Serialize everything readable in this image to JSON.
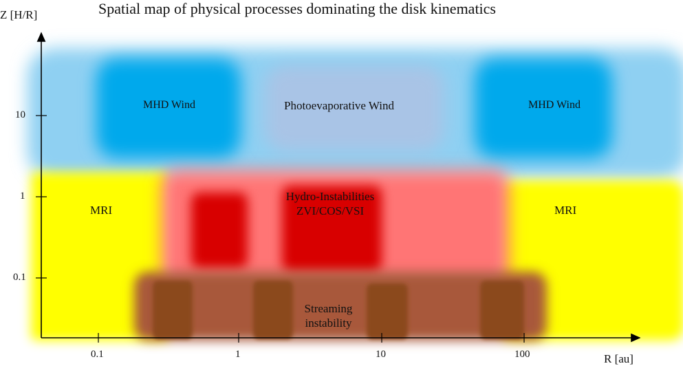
{
  "title": "Spatial map of physical processes dominating the disk kinematics",
  "y_axis": {
    "label": "Z [H/R]",
    "ticks": [
      "10",
      "1",
      "0.1"
    ]
  },
  "x_axis": {
    "label": "R [au]",
    "ticks": [
      "0.1",
      "1",
      "10",
      "100"
    ]
  },
  "regions": {
    "mhd_wind_left": "MHD Wind",
    "photoevaporative_wind": "Photoevaporative Wind",
    "mhd_wind_right": "MHD Wind",
    "mri_left": "MRI",
    "hydro_instabilities_line1": "Hydro-Instabilities",
    "hydro_instabilities_line2": "ZVI/COS/VSI",
    "mri_right": "MRI",
    "streaming_line1": "Streaming",
    "streaming_line2": "instability"
  },
  "colors": {
    "mhd_wind": "#00a9ec",
    "wind_haze": "#8fd0f2",
    "photoevaporative_wind": "#a9c4e6",
    "mri": "#ffff00",
    "hydro_red": "#d80000",
    "hydro_pink": "#ff7474",
    "streaming_brown": "#8b4a1c",
    "streaming_tan": "#a8593a"
  }
}
